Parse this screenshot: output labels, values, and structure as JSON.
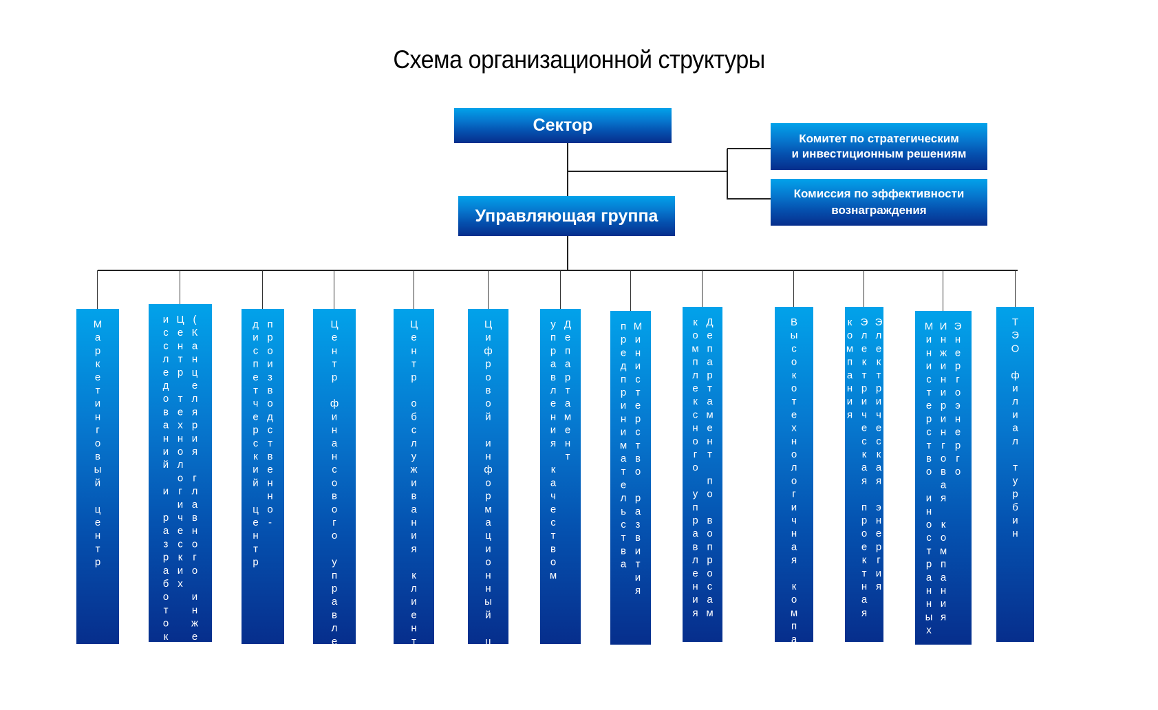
{
  "title": "Схема организационной структуры",
  "top": {
    "sector": "Сектор",
    "management_group": "Управляющая группа",
    "committee_lines": [
      "Комитет по стратегическим",
      "и инвестиционным решениям"
    ],
    "commission_lines": [
      "Комиссия по эффективности",
      "вознаграждения"
    ]
  },
  "units": [
    {
      "lines": [
        "Маркетинговый центр"
      ]
    },
    {
      "lines": [
        "(Канцелярия главного инженера)",
        "Центр технологических",
        "исследований и разработок"
      ]
    },
    {
      "lines": [
        "производственно-",
        "диспетчерский центр"
      ]
    },
    {
      "lines": [
        "Центр финансового управления"
      ]
    },
    {
      "lines": [
        "Центр обслуживания клиентов"
      ]
    },
    {
      "lines": [
        "Цифровой информационный центр"
      ]
    },
    {
      "lines": [
        "Департамент",
        "управления качеством"
      ]
    },
    {
      "lines": [
        "Министерство развития",
        "предпринимательства"
      ]
    },
    {
      "lines": [
        "Департамент по вопросам",
        "комплексного управления"
      ]
    },
    {
      "lines": [
        "Высокотехнологичная компания"
      ]
    },
    {
      "lines": [
        "Электрическая энергия",
        "Электрическая проектная",
        "компания"
      ]
    },
    {
      "lines": [
        "Энергоэнерго",
        "Инжиниринговая компания",
        "Министерство иностранных дел"
      ]
    },
    {
      "lines": [
        "ТЭО филиал турбин"
      ]
    }
  ],
  "colors": {
    "box_top": "#02a2ea",
    "box_bottom": "#062e8c",
    "connector": "#222222"
  }
}
